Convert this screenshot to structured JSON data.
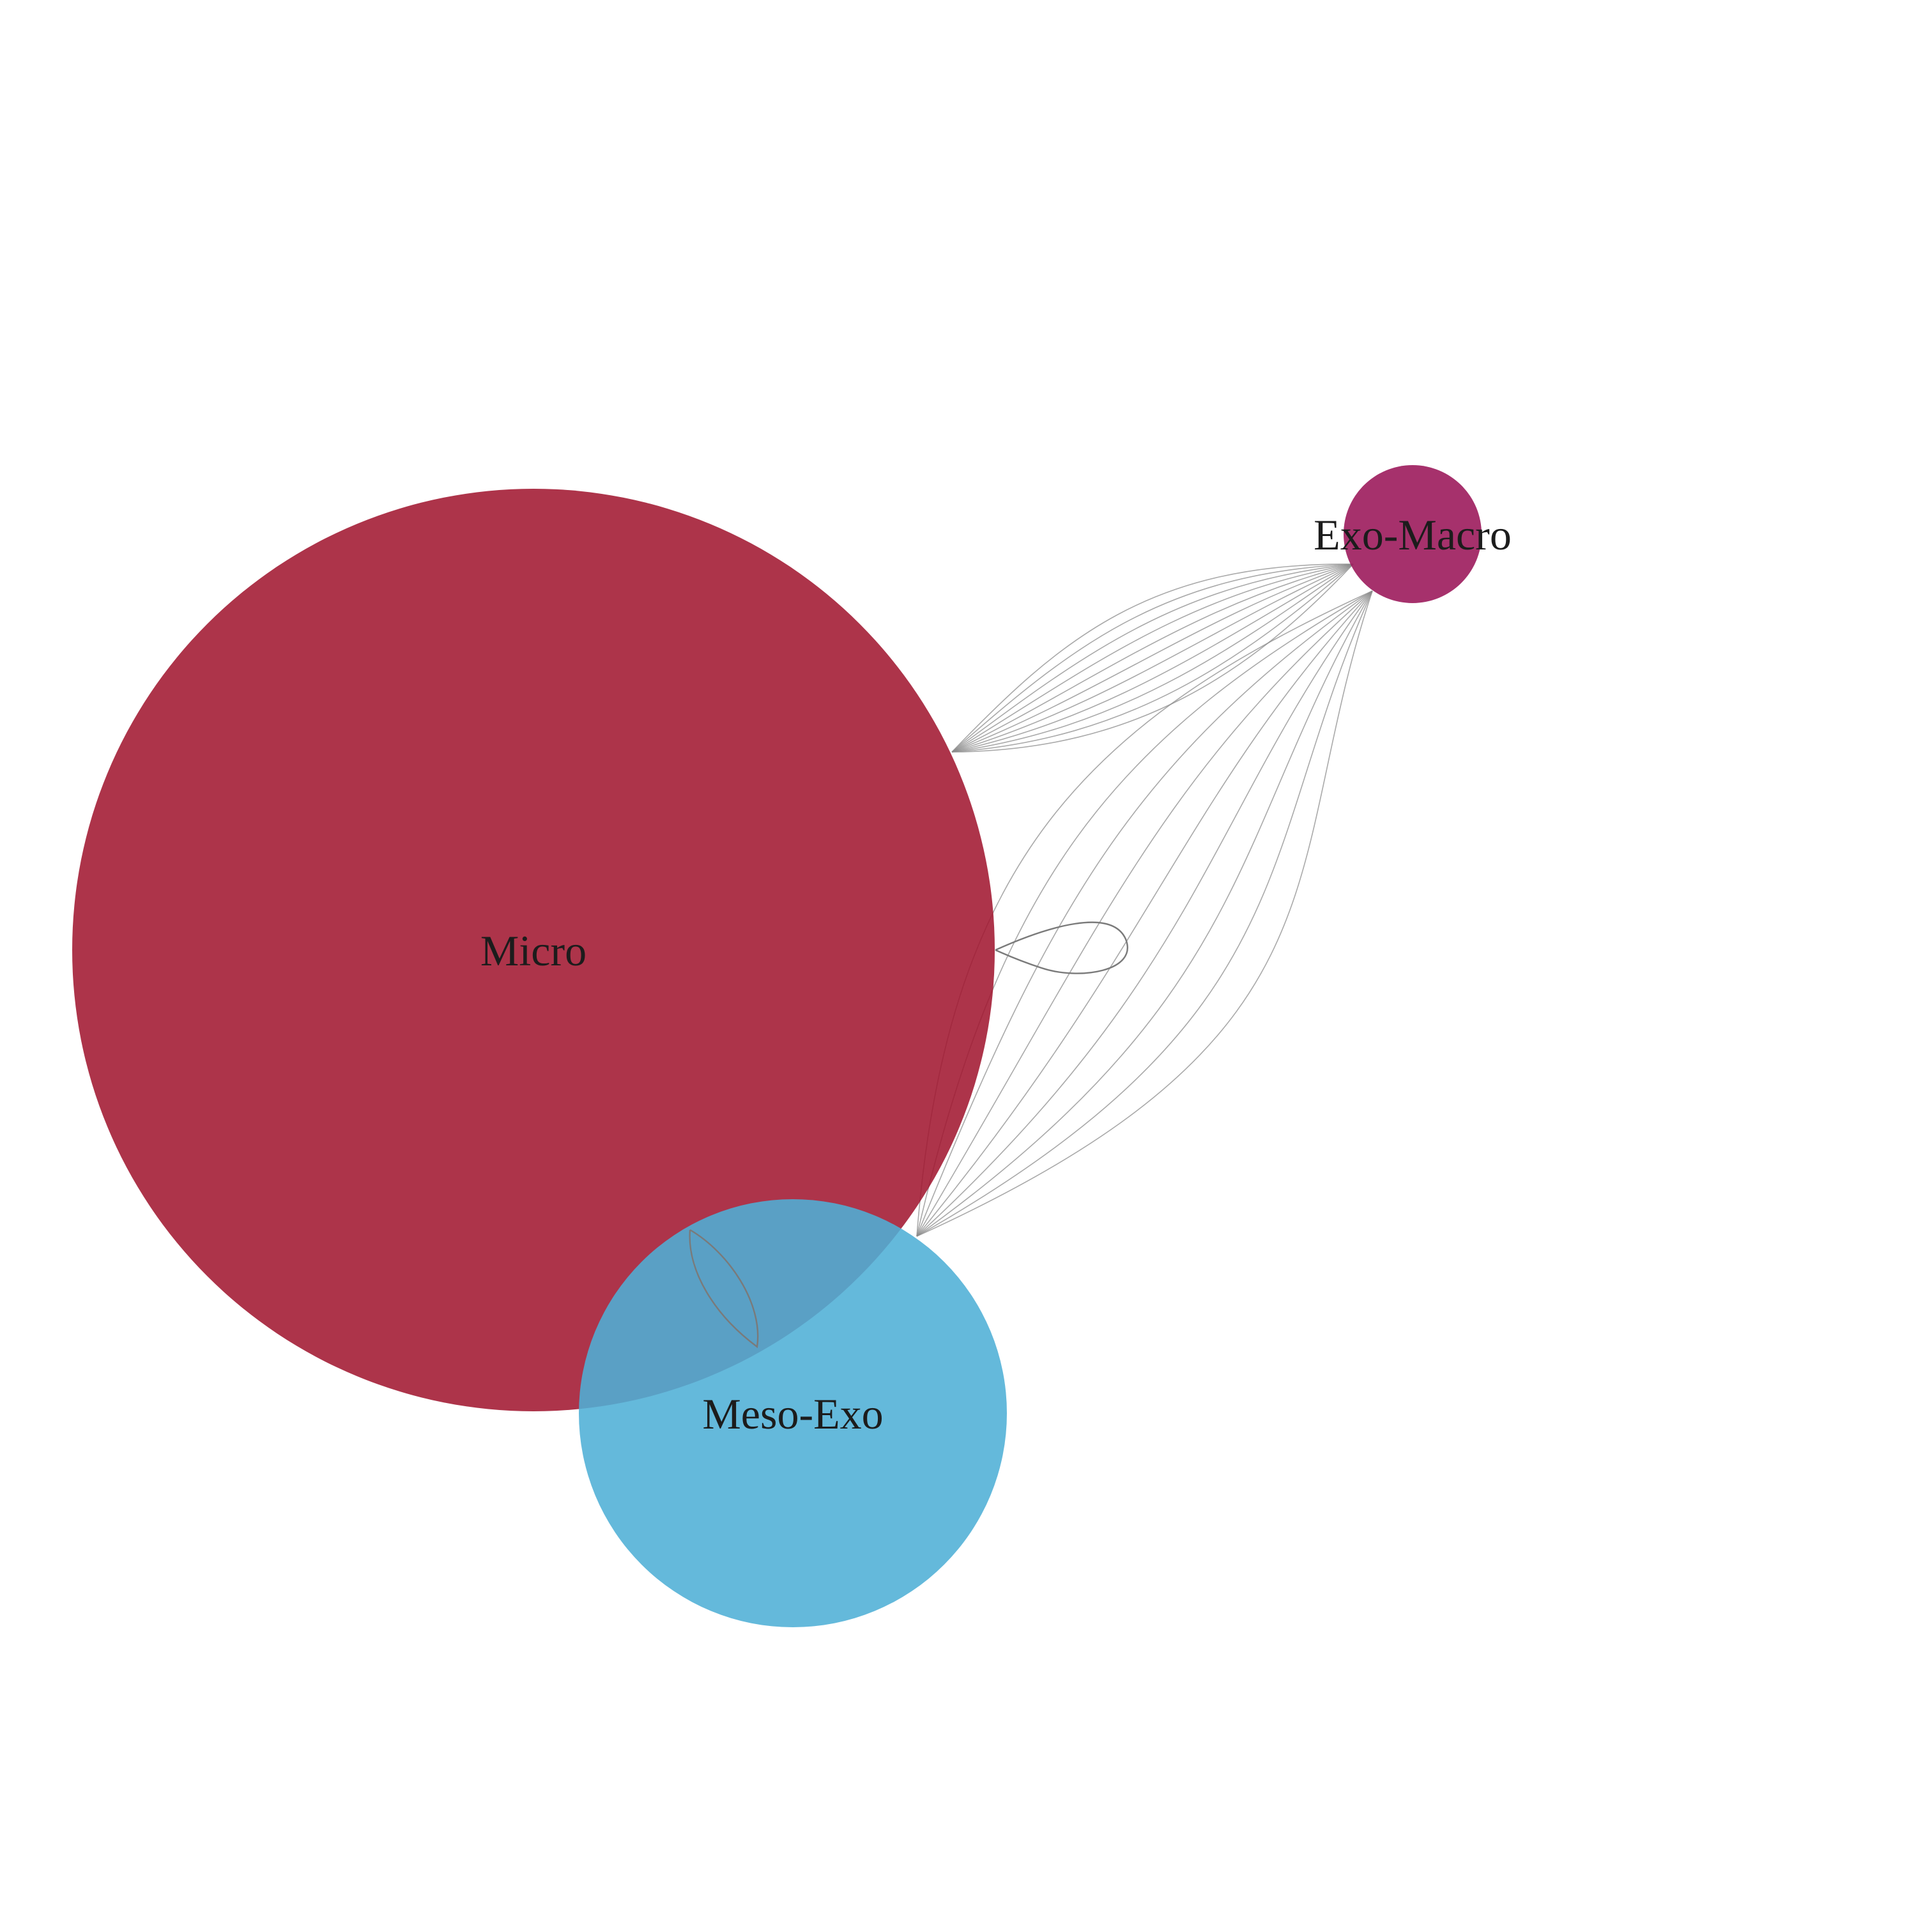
{
  "diagram": {
    "nodes": [
      {
        "id": "micro",
        "label": "Micro",
        "color": "#a1162f",
        "opacity": 0.87
      },
      {
        "id": "meso_exo",
        "label": "Meso-Exo",
        "color": "#4fafd6",
        "opacity": 0.88
      },
      {
        "id": "exo_macro",
        "label": "Exo-Macro",
        "color": "#9c1b5c",
        "opacity": 0.9
      }
    ],
    "edges": [
      {
        "from": "micro",
        "to": "exo_macro",
        "count": 11
      },
      {
        "from": "meso_exo",
        "to": "exo_macro",
        "count": 9
      },
      {
        "from": "micro",
        "to": "micro",
        "count": 1
      },
      {
        "from": "micro",
        "to": "meso_exo",
        "count": 1
      }
    ],
    "edge_color": "#8c8c8c"
  }
}
